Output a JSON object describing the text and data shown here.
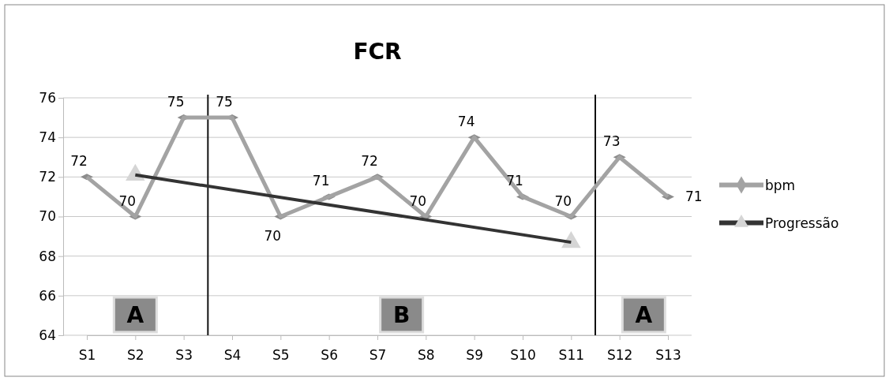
{
  "chart_data": {
    "type": "line",
    "title": "FCR",
    "categories": [
      "S1",
      "S2",
      "S3",
      "S4",
      "S5",
      "S6",
      "S7",
      "S8",
      "S9",
      "S10",
      "S11",
      "S12",
      "S13"
    ],
    "series": [
      {
        "name": "bpm",
        "color": "#a3a3a3",
        "marker": "diamond",
        "values": [
          72,
          70,
          75,
          75,
          70,
          71,
          72,
          70,
          74,
          71,
          70,
          73,
          71
        ],
        "value_labels": [
          "72",
          "70",
          "75",
          "75",
          "70",
          "71",
          "72",
          "70",
          "74",
          "71",
          "70",
          "73",
          "71"
        ]
      },
      {
        "name": "Progressão",
        "color": "#333333",
        "marker": "triangle",
        "values": [
          null,
          72.1,
          null,
          null,
          null,
          null,
          null,
          null,
          null,
          null,
          68.7,
          null,
          null
        ]
      }
    ],
    "ylim": [
      64,
      76
    ],
    "yticks": [
      64,
      66,
      68,
      70,
      72,
      74,
      76
    ],
    "grid": "y",
    "legend": "right",
    "annotations": [
      "A",
      "B",
      "A"
    ]
  }
}
